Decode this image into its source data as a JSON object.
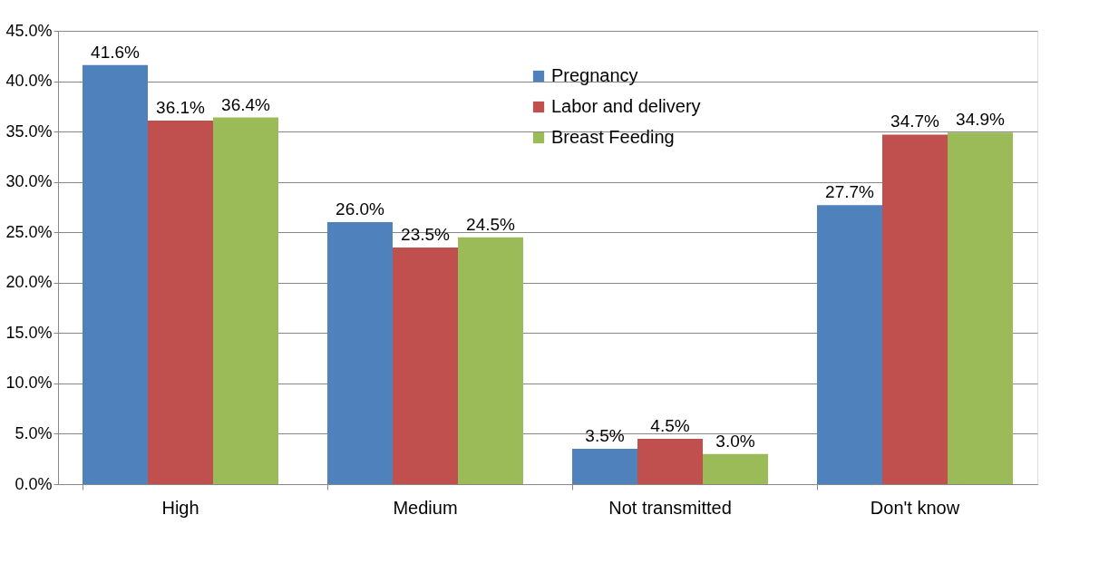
{
  "chart_data": {
    "type": "bar",
    "categories": [
      "High",
      "Medium",
      "Not transmitted",
      "Don't know"
    ],
    "series": [
      {
        "name": "Pregnancy",
        "color": "#4f81bd",
        "values": [
          41.6,
          26.0,
          3.5,
          27.7
        ],
        "value_labels": [
          "41.6%",
          "26.0%",
          "3.5%",
          "27.7%"
        ]
      },
      {
        "name": "Labor and delivery",
        "color": "#c0504d",
        "values": [
          36.1,
          23.5,
          4.5,
          34.7
        ],
        "value_labels": [
          "36.1%",
          "23.5%",
          "4.5%",
          "34.7%"
        ]
      },
      {
        "name": "Breast Feeding",
        "color": "#9bbb59",
        "values": [
          36.4,
          24.5,
          3.0,
          34.9
        ],
        "value_labels": [
          "36.4%",
          "24.5%",
          "3.0%",
          "34.9%"
        ]
      }
    ],
    "ylim": [
      0,
      45
    ],
    "yticks": [
      {
        "value": 0,
        "label": "0.0%"
      },
      {
        "value": 5,
        "label": "5.0%"
      },
      {
        "value": 10,
        "label": "10.0%"
      },
      {
        "value": 15,
        "label": "15.0%"
      },
      {
        "value": 20,
        "label": "20.0%"
      },
      {
        "value": 25,
        "label": "25.0%"
      },
      {
        "value": 30,
        "label": "30.0%"
      },
      {
        "value": 35,
        "label": "35.0%"
      },
      {
        "value": 40,
        "label": "40.0%"
      },
      {
        "value": 45,
        "label": "45.0%"
      }
    ],
    "grid": "y",
    "legend": "top right"
  }
}
